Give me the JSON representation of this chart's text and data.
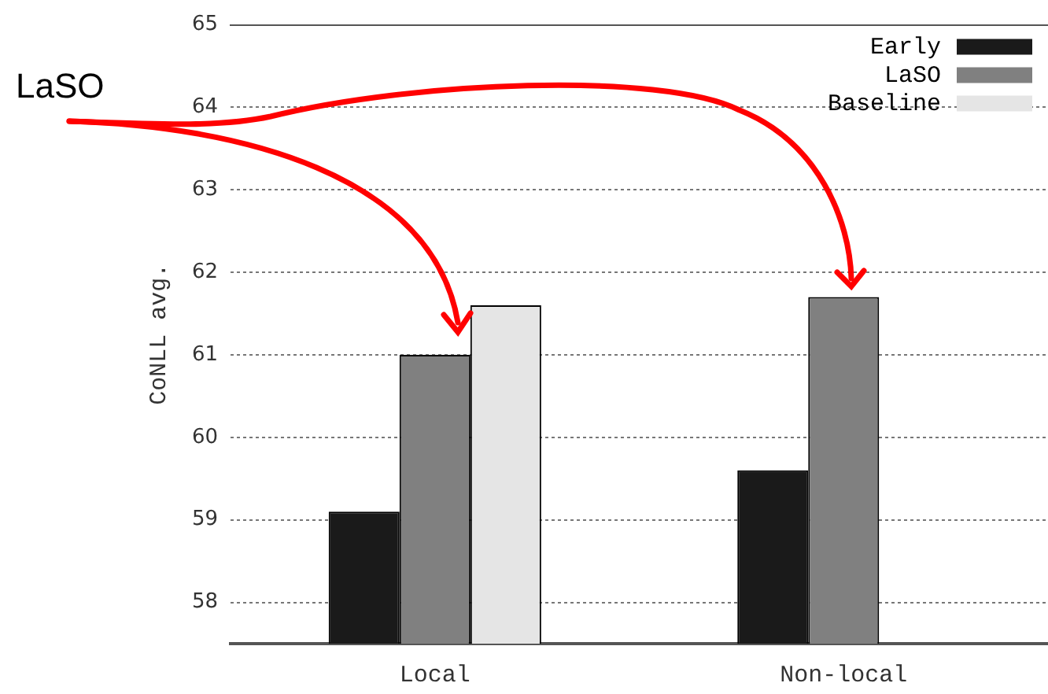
{
  "chart_data": {
    "type": "bar",
    "ylabel": "CoNLL avg.",
    "categories": [
      "Local",
      "Non-local"
    ],
    "series": [
      {
        "name": "Early",
        "color": "#1a1a1a",
        "values": [
          59.1,
          59.6
        ]
      },
      {
        "name": "LaSO",
        "color": "#808080",
        "values": [
          61.0,
          61.7
        ]
      },
      {
        "name": "Baseline",
        "color": "#e5e5e5",
        "values": [
          61.6,
          null
        ]
      }
    ],
    "ylim": [
      57.5,
      65
    ],
    "yticks": [
      58,
      59,
      60,
      61,
      62,
      63,
      64,
      65
    ],
    "grid": "y",
    "legend": "top right",
    "annotations": [
      "LaSO"
    ]
  }
}
